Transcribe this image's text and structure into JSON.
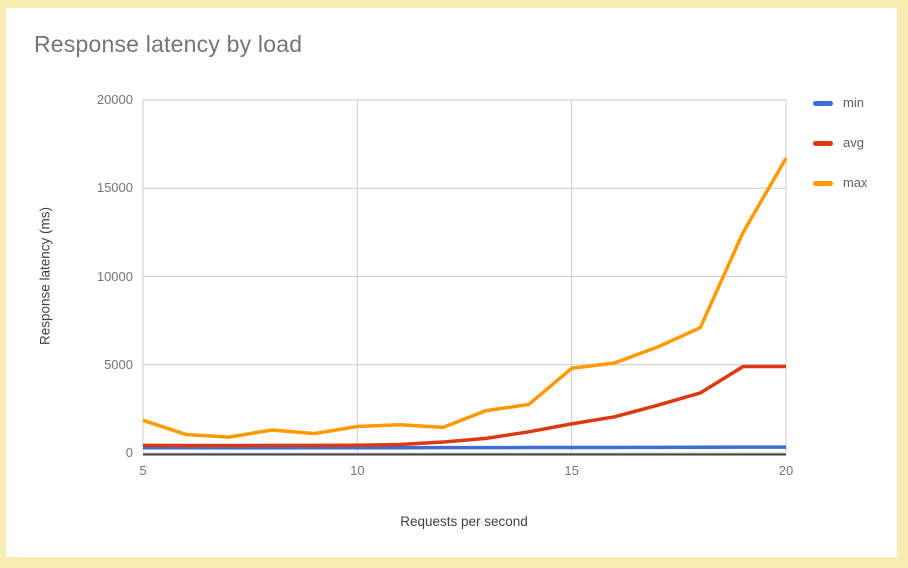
{
  "page": {
    "frame_border_color": "#f9ecb3",
    "background_color": "#ffffff"
  },
  "chart_data": {
    "type": "line",
    "title": "Response latency by load",
    "xlabel": "Requests per second",
    "ylabel": "Response latency (ms)",
    "x": [
      5,
      6,
      7,
      8,
      9,
      10,
      11,
      12,
      13,
      14,
      15,
      16,
      17,
      18,
      19,
      20
    ],
    "series": [
      {
        "name": "min",
        "color": "#3e6dd8",
        "values": [
          300,
          295,
          290,
          290,
          295,
          300,
          300,
          305,
          305,
          310,
          310,
          315,
          320,
          325,
          330,
          335
        ]
      },
      {
        "name": "avg",
        "color": "#dc3912",
        "values": [
          430,
          425,
          425,
          430,
          430,
          440,
          480,
          620,
          830,
          1200,
          1650,
          2050,
          2700,
          3400,
          4900,
          4900
        ]
      },
      {
        "name": "max",
        "color": "#ff9900",
        "values": [
          1850,
          1050,
          900,
          1300,
          1100,
          1500,
          1600,
          1450,
          2400,
          2750,
          4800,
          5100,
          6000,
          7100,
          12500,
          16700
        ]
      }
    ],
    "xlim": [
      5,
      20
    ],
    "ylim": [
      0,
      20000
    ],
    "x_ticks": [
      "5",
      "10",
      "15",
      "20"
    ],
    "x_tick_values": [
      5,
      10,
      15,
      20
    ],
    "y_ticks": [
      "0",
      "5000",
      "10000",
      "15000",
      "20000"
    ],
    "y_tick_values": [
      0,
      5000,
      10000,
      15000,
      20000
    ],
    "grid": true,
    "gridline_color": "#cccccc",
    "axis_line_color": "#424242",
    "legend_position": "right",
    "title_color": "#757575",
    "tick_label_color": "#757575",
    "axis_title_color": "#424242"
  }
}
